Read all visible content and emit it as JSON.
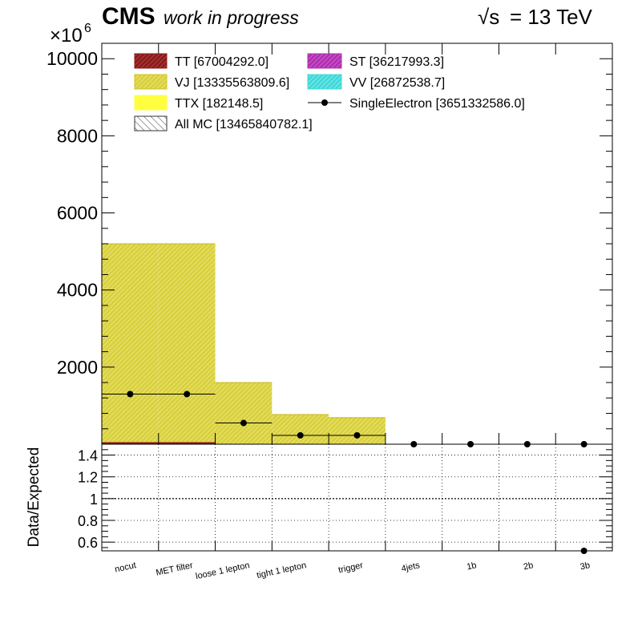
{
  "header": {
    "cms_label": "CMS",
    "subtitle": "work in progress",
    "energy_label": "= 13 TeV",
    "sqrt_symbol": "√s",
    "y_multiplier": "×10",
    "y_multiplier_exp": "6"
  },
  "legend": {
    "entries": [
      {
        "label": "TT [67004292.0]",
        "color": "#8b1a1a",
        "style": "hatch-fill"
      },
      {
        "label": "ST [36217993.3]",
        "color": "#b030b0",
        "style": "hatch-fill"
      },
      {
        "label": "VJ [13335563809.6]",
        "color": "#d4c020",
        "style": "hatch-fill"
      },
      {
        "label": "VV [26872538.7]",
        "color": "#40d8d8",
        "style": "hatch-fill"
      },
      {
        "label": "TTX [182148.5]",
        "color": "#ffff40",
        "style": "fill"
      },
      {
        "label": "SingleElectron [3651332586.0]",
        "color": "#000000",
        "style": "marker"
      },
      {
        "label": "All MC [13465840782.1]",
        "color": "#000000",
        "style": "hatch"
      }
    ]
  },
  "colors": {
    "vj_fill": "#d8d040",
    "vj_hatch": "#e8e070",
    "tt_line": "#8b1a1a",
    "frame": "#000000"
  },
  "chart_data": [
    {
      "type": "bar",
      "title": "",
      "xlabel": "",
      "ylabel": "",
      "y_scale_factor": 1000000,
      "ylim": [
        0,
        10400
      ],
      "y_ticks": [
        2000,
        4000,
        6000,
        8000,
        10000
      ],
      "categories": [
        "nocut",
        "MET filter",
        "loose 1 lepton",
        "tight 1 lepton",
        "trigger",
        "4jets",
        "1b",
        "2b",
        "3b"
      ],
      "stack_values": [
        5200,
        5200,
        1600,
        770,
        690,
        0,
        0,
        0,
        0
      ],
      "series": [
        {
          "name": "SingleElectron",
          "values": [
            1300,
            1300,
            550,
            230,
            230,
            0,
            0,
            0,
            0
          ]
        }
      ]
    },
    {
      "type": "scatter",
      "title": "",
      "xlabel": "",
      "ylabel": "Data/Expected",
      "ylim": [
        0.52,
        1.5
      ],
      "y_ticks": [
        0.6,
        0.8,
        1,
        1.2,
        1.4
      ],
      "y_tick_labels": [
        "0.6",
        "0.8",
        "1",
        "1.2",
        "1.4"
      ],
      "reference_line": 1,
      "grid": true,
      "categories": [
        "nocut",
        "MET filter",
        "loose 1 lepton",
        "tight 1 lepton",
        "trigger",
        "4jets",
        "1b",
        "2b",
        "3b"
      ],
      "series": [
        {
          "name": "",
          "points": [
            {
              "category": "3b",
              "value": 0.52
            }
          ]
        }
      ]
    }
  ]
}
